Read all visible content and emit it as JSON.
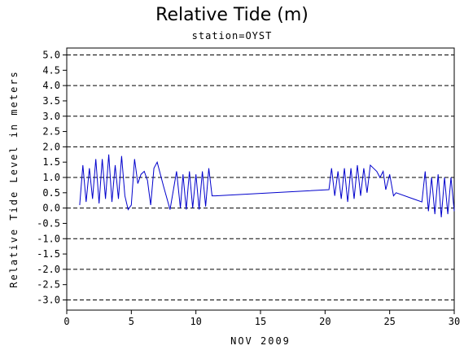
{
  "chart_data": {
    "type": "line",
    "title": "Relative Tide (m)",
    "subtitle": "station=OYST",
    "xlabel": "NOV 2009",
    "ylabel": "Relative Tide Level in meters",
    "xlim": [
      0,
      30
    ],
    "ylim": [
      -3.0,
      5.0
    ],
    "x_ticks": [
      0,
      5,
      10,
      15,
      20,
      25,
      30
    ],
    "y_ticks": [
      5.0,
      4.5,
      4.0,
      3.5,
      3.0,
      2.5,
      2.0,
      1.5,
      1.0,
      0.5,
      0.0,
      -0.5,
      -1.0,
      -1.5,
      -2.0,
      -2.5,
      -3.0
    ],
    "y_tick_labels": [
      "5.0",
      "4.5",
      "4.0",
      "3.5",
      "3.0",
      "2.5",
      "2.0",
      "1.5",
      "1.0",
      "0.5",
      "0.0",
      "-0.5",
      "-1.0",
      "-1.5",
      "-2.0",
      "-2.5",
      "-3.0"
    ],
    "gridlines_y": [
      5.0,
      4.0,
      3.0,
      2.0,
      1.0,
      0.0,
      -1.0,
      -2.0,
      -3.0
    ],
    "grid_style": "dashed",
    "line_color": "#0000cc",
    "series": [
      {
        "x": [
          1.0,
          1.25,
          1.5,
          1.75,
          2.0,
          2.25,
          2.5,
          2.75,
          3.0,
          3.25,
          3.5,
          3.75,
          4.0,
          4.25,
          4.5,
          4.75,
          5.0,
          5.25,
          5.5,
          5.75,
          6.0,
          6.25,
          6.5,
          6.75,
          7.0,
          7.5,
          8.0,
          8.5,
          8.8,
          9.0,
          9.25,
          9.5,
          9.75,
          10.0,
          10.25,
          10.5,
          10.75,
          11.0,
          11.25,
          11.5,
          20.3,
          20.5,
          20.75,
          21.0,
          21.25,
          21.5,
          21.75,
          22.0,
          22.25,
          22.5,
          22.75,
          23.0,
          23.25,
          23.5,
          23.75,
          24.0,
          24.25,
          24.5,
          24.7,
          25.0,
          25.3,
          25.5,
          27.5,
          27.75,
          28.0,
          28.25,
          28.5,
          28.75,
          29.0,
          29.25,
          29.5,
          29.75,
          30.0
        ],
        "y": [
          0.1,
          1.4,
          0.2,
          1.3,
          0.3,
          1.6,
          0.15,
          1.6,
          0.3,
          1.75,
          0.2,
          1.4,
          0.3,
          1.7,
          0.4,
          -0.05,
          0.1,
          1.6,
          0.8,
          1.1,
          1.2,
          0.9,
          0.1,
          1.3,
          1.5,
          0.7,
          -0.05,
          1.2,
          0.0,
          1.1,
          -0.05,
          1.2,
          0.0,
          1.1,
          -0.05,
          1.2,
          0.05,
          1.3,
          0.4,
          0.4,
          0.6,
          1.3,
          0.4,
          1.2,
          0.3,
          1.3,
          0.2,
          1.3,
          0.3,
          1.4,
          0.4,
          1.3,
          0.5,
          1.4,
          1.3,
          1.2,
          1.0,
          1.2,
          0.6,
          1.1,
          0.4,
          0.5,
          0.2,
          1.2,
          -0.1,
          1.0,
          -0.2,
          1.1,
          -0.3,
          1.0,
          -0.2,
          1.0,
          -0.1
        ]
      }
    ]
  }
}
